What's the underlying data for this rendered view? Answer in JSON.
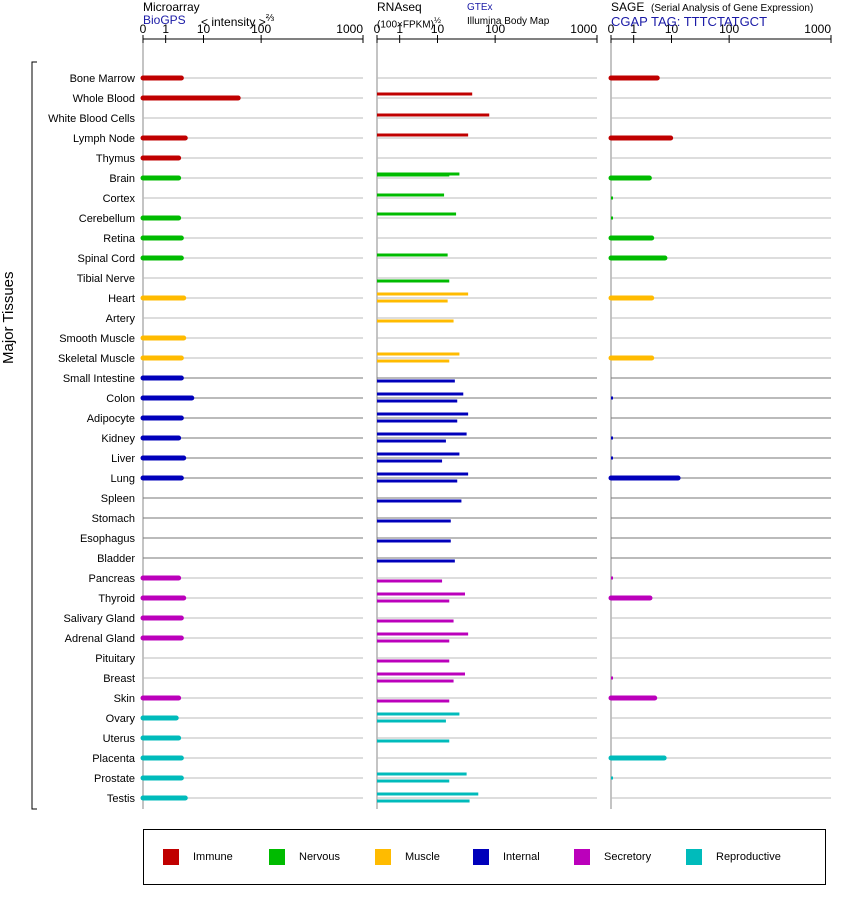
{
  "panels": {
    "microarray": {
      "title": "Microarray",
      "source": "BioGPS",
      "scale_label": "< intensity >",
      "scale_exp": "⅔"
    },
    "rnaseq": {
      "title": "RNAseq",
      "unit_label": "(100×FPKM)",
      "unit_exp": "½",
      "source_link": "GTEx",
      "source_alt": "Illumina Body Map"
    },
    "sage": {
      "title": "SAGE",
      "subtitle": "(Serial Analysis of Gene Expression)",
      "tag": "CGAP TAG: TTTCTATGCT"
    }
  },
  "y_axis_label": "Major Tissues",
  "legend": [
    {
      "label": "Immune",
      "color": "#c00000"
    },
    {
      "label": "Nervous",
      "color": "#00bb00"
    },
    {
      "label": "Muscle",
      "color": "#ffbb00"
    },
    {
      "label": "Internal",
      "color": "#0000bb"
    },
    {
      "label": "Secretory",
      "color": "#bb00bb"
    },
    {
      "label": "Reproductive",
      "color": "#00bbbb"
    }
  ],
  "chart_data": {
    "type": "bar",
    "x_ticks": [
      "0",
      "1",
      "10",
      "100",
      "1000"
    ],
    "xlim": [
      0,
      1000
    ],
    "categories": [
      "Bone Marrow",
      "Whole Blood",
      "White Blood Cells",
      "Lymph Node",
      "Thymus",
      "Brain",
      "Cortex",
      "Cerebellum",
      "Retina",
      "Spinal Cord",
      "Tibial Nerve",
      "Heart",
      "Artery",
      "Smooth Muscle",
      "Skeletal Muscle",
      "Small Intestine",
      "Colon",
      "Adipocyte",
      "Kidney",
      "Liver",
      "Lung",
      "Spleen",
      "Stomach",
      "Esophagus",
      "Bladder",
      "Pancreas",
      "Thyroid",
      "Salivary Gland",
      "Adrenal Gland",
      "Pituitary",
      "Breast",
      "Skin",
      "Ovary",
      "Uterus",
      "Placenta",
      "Prostate",
      "Testis"
    ],
    "groups": [
      "Immune",
      "Immune",
      "Immune",
      "Immune",
      "Immune",
      "Nervous",
      "Nervous",
      "Nervous",
      "Nervous",
      "Nervous",
      "Nervous",
      "Muscle",
      "Muscle",
      "Muscle",
      "Muscle",
      "Internal",
      "Internal",
      "Internal",
      "Internal",
      "Internal",
      "Internal",
      "Internal",
      "Internal",
      "Internal",
      "Internal",
      "Secretory",
      "Secretory",
      "Secretory",
      "Secretory",
      "Secretory",
      "Secretory",
      "Secretory",
      "Reproductive",
      "Reproductive",
      "Reproductive",
      "Reproductive",
      "Reproductive"
    ],
    "series": [
      {
        "name": "Microarray",
        "values": [
          2.6,
          40,
          null,
          3.3,
          2.2,
          2.2,
          null,
          2.2,
          2.6,
          2.6,
          null,
          3.0,
          null,
          3.0,
          2.6,
          2.6,
          4.9,
          2.6,
          2.2,
          3.0,
          2.6,
          null,
          null,
          null,
          null,
          2.2,
          3.0,
          2.6,
          2.6,
          null,
          null,
          2.2,
          1.9,
          2.2,
          2.6,
          2.6,
          3.3
        ]
      },
      {
        "name": "RNAseq GTEx",
        "values": [
          null,
          40,
          null,
          null,
          null,
          24,
          null,
          21,
          null,
          null,
          null,
          34,
          null,
          null,
          24,
          null,
          28,
          34,
          32,
          24,
          34,
          null,
          null,
          null,
          null,
          null,
          30,
          null,
          34,
          null,
          30,
          null,
          24,
          null,
          null,
          32,
          51
        ]
      },
      {
        "name": "RNAseq Illumina Body Map",
        "values": [
          null,
          null,
          79,
          34,
          null,
          16,
          13,
          null,
          null,
          15,
          null,
          null,
          null,
          null,
          null,
          null,
          null,
          null,
          null,
          null,
          null,
          null,
          null,
          null,
          null,
          null,
          null,
          null,
          null,
          null,
          null,
          null,
          null,
          null,
          null,
          null,
          null
        ]
      },
      {
        "name": "RNAseq",
        "values": [
          null,
          null,
          null,
          null,
          null,
          null,
          null,
          null,
          null,
          null,
          16,
          15,
          19,
          null,
          16,
          20,
          22,
          22,
          14,
          12,
          22,
          26,
          17,
          17,
          20,
          12,
          16,
          19,
          16,
          16,
          19,
          16,
          14,
          16,
          null,
          16,
          36
        ]
      },
      {
        "name": "SAGE",
        "values": [
          4.2,
          null,
          null,
          9.5,
          null,
          2.6,
          0.03,
          0.03,
          3.0,
          6.7,
          null,
          3.0,
          null,
          null,
          3.0,
          null,
          0.05,
          null,
          0.05,
          0.05,
          13,
          null,
          null,
          null,
          null,
          0.05,
          2.7,
          null,
          null,
          null,
          0.05,
          3.6,
          null,
          null,
          6.4,
          0.03,
          null
        ]
      }
    ]
  }
}
